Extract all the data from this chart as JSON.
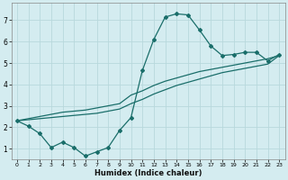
{
  "xlabel": "Humidex (Indice chaleur)",
  "bg_color": "#d4ecf0",
  "grid_color": "#b8d8dc",
  "line_color": "#1a6e6a",
  "xlim": [
    -0.5,
    23.5
  ],
  "ylim": [
    0.5,
    7.8
  ],
  "xticks": [
    0,
    1,
    2,
    3,
    4,
    5,
    6,
    7,
    8,
    9,
    10,
    11,
    12,
    13,
    14,
    15,
    16,
    17,
    18,
    19,
    20,
    21,
    22,
    23
  ],
  "yticks": [
    1,
    2,
    3,
    4,
    5,
    6,
    7
  ],
  "line1_x": [
    0,
    1,
    2,
    3,
    4,
    5,
    6,
    7,
    8,
    9,
    10,
    11,
    12,
    13,
    14,
    15,
    16,
    17,
    18,
    19,
    20,
    21,
    22,
    23
  ],
  "line1_y": [
    2.3,
    2.05,
    1.7,
    1.05,
    1.3,
    1.05,
    0.65,
    0.85,
    1.05,
    1.85,
    2.45,
    4.65,
    6.1,
    7.15,
    7.3,
    7.25,
    6.55,
    5.8,
    5.35,
    5.4,
    5.5,
    5.5,
    5.1,
    5.4
  ],
  "line2_x": [
    0,
    1,
    2,
    3,
    4,
    5,
    6,
    7,
    8,
    9,
    10,
    11,
    12,
    13,
    14,
    15,
    16,
    17,
    18,
    19,
    20,
    21,
    22,
    23
  ],
  "line2_y": [
    2.3,
    2.4,
    2.5,
    2.6,
    2.7,
    2.75,
    2.8,
    2.9,
    3.0,
    3.1,
    3.5,
    3.7,
    3.95,
    4.15,
    4.3,
    4.45,
    4.6,
    4.7,
    4.8,
    4.9,
    5.0,
    5.1,
    5.2,
    5.35
  ],
  "line3_x": [
    0,
    1,
    2,
    3,
    4,
    5,
    6,
    7,
    8,
    9,
    10,
    11,
    12,
    13,
    14,
    15,
    16,
    17,
    18,
    19,
    20,
    21,
    22,
    23
  ],
  "line3_y": [
    2.3,
    2.35,
    2.4,
    2.45,
    2.5,
    2.55,
    2.6,
    2.65,
    2.75,
    2.85,
    3.1,
    3.3,
    3.55,
    3.75,
    3.95,
    4.1,
    4.25,
    4.4,
    4.55,
    4.65,
    4.75,
    4.85,
    4.95,
    5.35
  ]
}
